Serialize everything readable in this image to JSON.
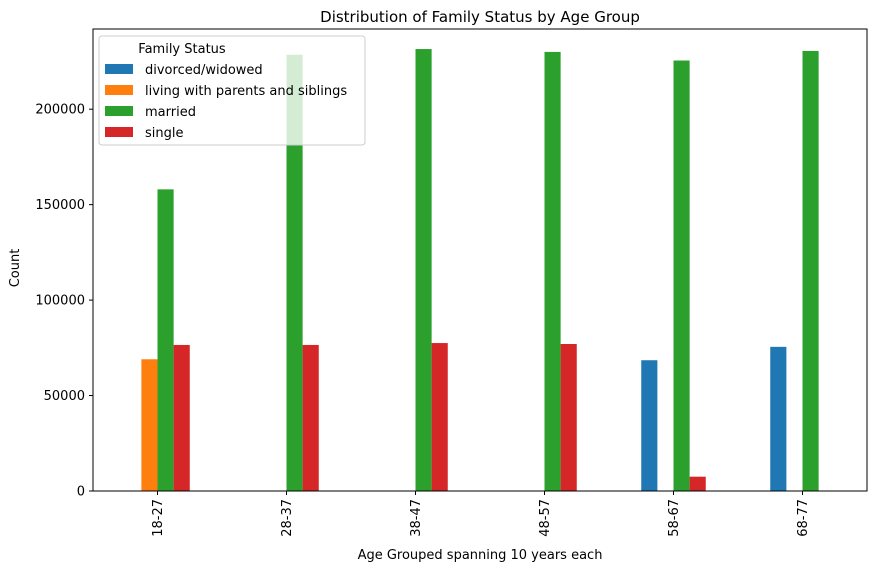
{
  "chart_data": {
    "type": "bar",
    "title": "Distribution of Family Status by Age Group",
    "xlabel": "Age Grouped spanning 10 years each",
    "ylabel": "Count",
    "categories": [
      "18-27",
      "28-37",
      "38-47",
      "48-57",
      "58-67",
      "68-77"
    ],
    "ylim": [
      0,
      242000
    ],
    "yticks": [
      0,
      50000,
      100000,
      150000,
      200000
    ],
    "ytick_labels": [
      "0",
      "50000",
      "100000",
      "150000",
      "200000"
    ],
    "grid": false,
    "legend": {
      "title": "Family Status",
      "position": "top-left"
    },
    "series": [
      {
        "name": "divorced/widowed",
        "color": "#1f77b4",
        "values": [
          0,
          0,
          0,
          0,
          68500,
          75500
        ]
      },
      {
        "name": "living with parents and siblings",
        "color": "#ff7f0e",
        "values": [
          69000,
          0,
          0,
          0,
          0,
          0
        ]
      },
      {
        "name": "married",
        "color": "#2ca02c",
        "values": [
          158000,
          228500,
          231500,
          230000,
          225500,
          230500
        ]
      },
      {
        "name": "single",
        "color": "#d62728",
        "values": [
          76500,
          76500,
          77500,
          77000,
          7500,
          0
        ]
      }
    ]
  }
}
